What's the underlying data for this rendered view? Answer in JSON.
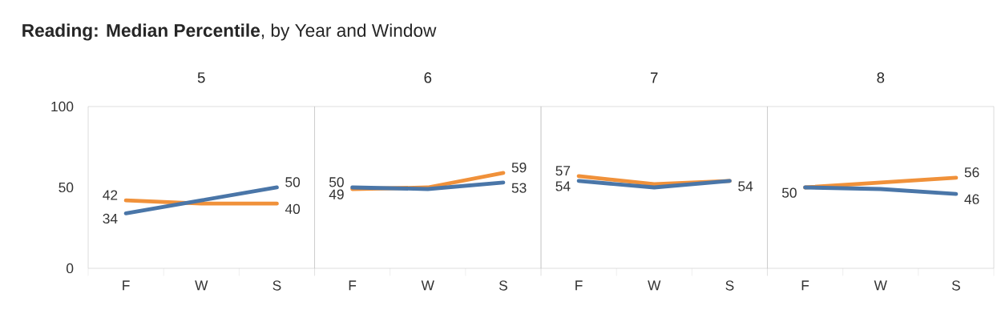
{
  "chart_data": [
    {
      "type": "line",
      "title": "**Reading: Median Percentile**, by Year and Window",
      "subtitle": "5",
      "categories": [
        "F",
        "W",
        "S"
      ],
      "ylim": [
        0,
        100
      ],
      "yticks": [
        0,
        50,
        100
      ],
      "series": [
        {
          "color": "#f0913a",
          "values": [
            42,
            40,
            40
          ],
          "value_labels": [
            "42",
            null,
            "40"
          ]
        },
        {
          "color": "#4a76a8",
          "values": [
            34,
            42,
            50
          ],
          "value_labels": [
            "34",
            null,
            "50"
          ]
        }
      ]
    },
    {
      "type": "line",
      "subtitle": "6",
      "categories": [
        "F",
        "W",
        "S"
      ],
      "ylim": [
        0,
        100
      ],
      "yticks": [
        0,
        50,
        100
      ],
      "tick_labels": "x",
      "series": [
        {
          "color": "#f0913a",
          "values": [
            49,
            50,
            59
          ],
          "value_labels": [
            "49",
            null,
            "59"
          ]
        },
        {
          "color": "#4a76a8",
          "values": [
            50,
            49,
            53
          ],
          "value_labels": [
            "50",
            null,
            "53"
          ]
        }
      ]
    },
    {
      "type": "line",
      "subtitle": "7",
      "categories": [
        "F",
        "W",
        "S"
      ],
      "ylim": [
        0,
        100
      ],
      "yticks": [
        0,
        50,
        100
      ],
      "tick_labels": "x",
      "series": [
        {
          "color": "#f0913a",
          "values": [
            57,
            52,
            54
          ],
          "value_labels": [
            "57",
            null,
            null
          ]
        },
        {
          "color": "#4a76a8",
          "values": [
            54,
            50,
            54
          ],
          "value_labels": [
            "54",
            null,
            "54"
          ]
        }
      ]
    },
    {
      "type": "line",
      "subtitle": "8",
      "categories": [
        "F",
        "W",
        "S"
      ],
      "ylim": [
        0,
        100
      ],
      "yticks": [
        0,
        50,
        100
      ],
      "tick_labels": "x",
      "series": [
        {
          "color": "#f0913a",
          "values": [
            50,
            53,
            56
          ],
          "value_labels": [
            null,
            null,
            "56"
          ]
        },
        {
          "color": "#4a76a8",
          "values": [
            50,
            49,
            46
          ],
          "value_labels": [
            "50",
            null,
            "46"
          ]
        }
      ]
    }
  ]
}
